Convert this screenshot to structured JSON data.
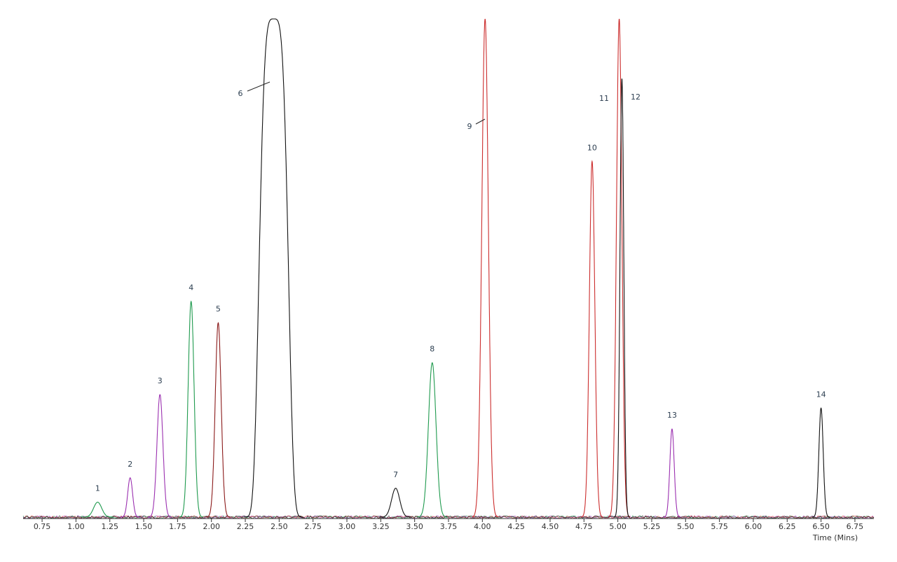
{
  "chart_data": {
    "type": "chromatogram",
    "x_label": "Time (Mins)",
    "xlim": [
      0.61,
      6.89
    ],
    "ylim": [
      0,
      100
    ],
    "xticks": [
      0.75,
      {
        "value": 1,
        "label": "1.00"
      },
      1.25,
      {
        "value": 1.5,
        "label": "1.50"
      },
      1.75,
      {
        "value": 2,
        "label": "2.00"
      },
      2.25,
      {
        "value": 2.5,
        "label": "2.50"
      },
      2.75,
      {
        "value": 3,
        "label": "3.00"
      },
      3.25,
      {
        "value": 3.5,
        "label": "3.50"
      },
      3.75,
      {
        "value": 4,
        "label": "4.00"
      },
      4.25,
      {
        "value": 4.5,
        "label": "4.50"
      },
      4.75,
      {
        "value": 5,
        "label": "5.00"
      },
      5.25,
      {
        "value": 5.5,
        "label": "5.50"
      },
      5.75,
      {
        "value": 6,
        "label": "6.00"
      },
      6.25,
      {
        "value": 6.5,
        "label": "6.50"
      },
      6.75
    ],
    "peaks": [
      {
        "label": "1",
        "time": 1.16,
        "height": 3,
        "width": 0.03,
        "color": "#1f9a4e"
      },
      {
        "label": "2",
        "time": 1.4,
        "height": 7.9,
        "width": 0.018,
        "color": "#9b30b0"
      },
      {
        "label": "3",
        "time": 1.62,
        "height": 24.6,
        "width": 0.022,
        "color": "#9b30b0"
      },
      {
        "label": "4",
        "time": 1.85,
        "height": 43.3,
        "width": 0.022,
        "color": "#1f9a4e"
      },
      {
        "label": "5",
        "time": 2.05,
        "height": 39,
        "width": 0.022,
        "color": "#8b1a1a"
      },
      {
        "label": "6",
        "time": 2.46,
        "height": 100,
        "width": 0.1,
        "color": "#111111"
      },
      {
        "label": "7",
        "time": 3.36,
        "height": 5.8,
        "width": 0.03,
        "color": "#111111"
      },
      {
        "label": "8",
        "time": 3.63,
        "height": 31,
        "width": 0.028,
        "color": "#1f9a4e"
      },
      {
        "label": "9",
        "time": 4.02,
        "height": 100,
        "width": 0.024,
        "color": "#cc2e2e"
      },
      {
        "label": "10",
        "time": 4.81,
        "height": 71.4,
        "width": 0.02,
        "color": "#cc2e2e"
      },
      {
        "label": "11",
        "time": 5.01,
        "height": 100,
        "width": 0.02,
        "color": "#cc2e2e"
      },
      {
        "label": "12",
        "time": 5.03,
        "height": 88,
        "width": 0.014,
        "color": "#111111"
      },
      {
        "label": "13",
        "time": 5.4,
        "height": 17.7,
        "width": 0.016,
        "color": "#9b30b0"
      },
      {
        "label": "14",
        "time": 6.5,
        "height": 21.9,
        "width": 0.016,
        "color": "#111111"
      }
    ]
  }
}
